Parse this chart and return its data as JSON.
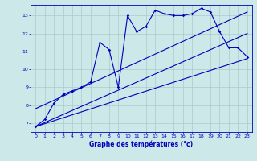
{
  "xlabel": "Graphe des températures (°c)",
  "background_color": "#cce8e8",
  "grid_color": "#aacccc",
  "line_color": "#0000bb",
  "xlim": [
    -0.5,
    23.5
  ],
  "ylim": [
    6.5,
    13.6
  ],
  "yticks": [
    7,
    8,
    9,
    10,
    11,
    12,
    13
  ],
  "xticks": [
    0,
    1,
    2,
    3,
    4,
    5,
    6,
    7,
    8,
    9,
    10,
    11,
    12,
    13,
    14,
    15,
    16,
    17,
    18,
    19,
    20,
    21,
    22,
    23
  ],
  "line1_x": [
    0,
    1,
    2,
    3,
    4,
    5,
    6,
    7,
    8,
    9,
    10,
    11,
    12,
    13,
    14,
    15,
    16,
    17,
    18,
    19,
    20,
    21,
    22,
    23
  ],
  "line1_y": [
    6.8,
    7.2,
    8.1,
    8.6,
    8.8,
    9.0,
    9.3,
    11.5,
    11.1,
    9.0,
    13.0,
    12.1,
    12.4,
    13.3,
    13.1,
    13.0,
    13.0,
    13.1,
    13.4,
    13.2,
    12.1,
    11.2,
    11.2,
    10.7
  ],
  "line2_x": [
    0,
    23
  ],
  "line2_y": [
    6.8,
    12.0
  ],
  "line3_x": [
    0,
    23
  ],
  "line3_y": [
    6.8,
    10.6
  ],
  "line4_x": [
    0,
    23
  ],
  "line4_y": [
    7.8,
    13.2
  ]
}
